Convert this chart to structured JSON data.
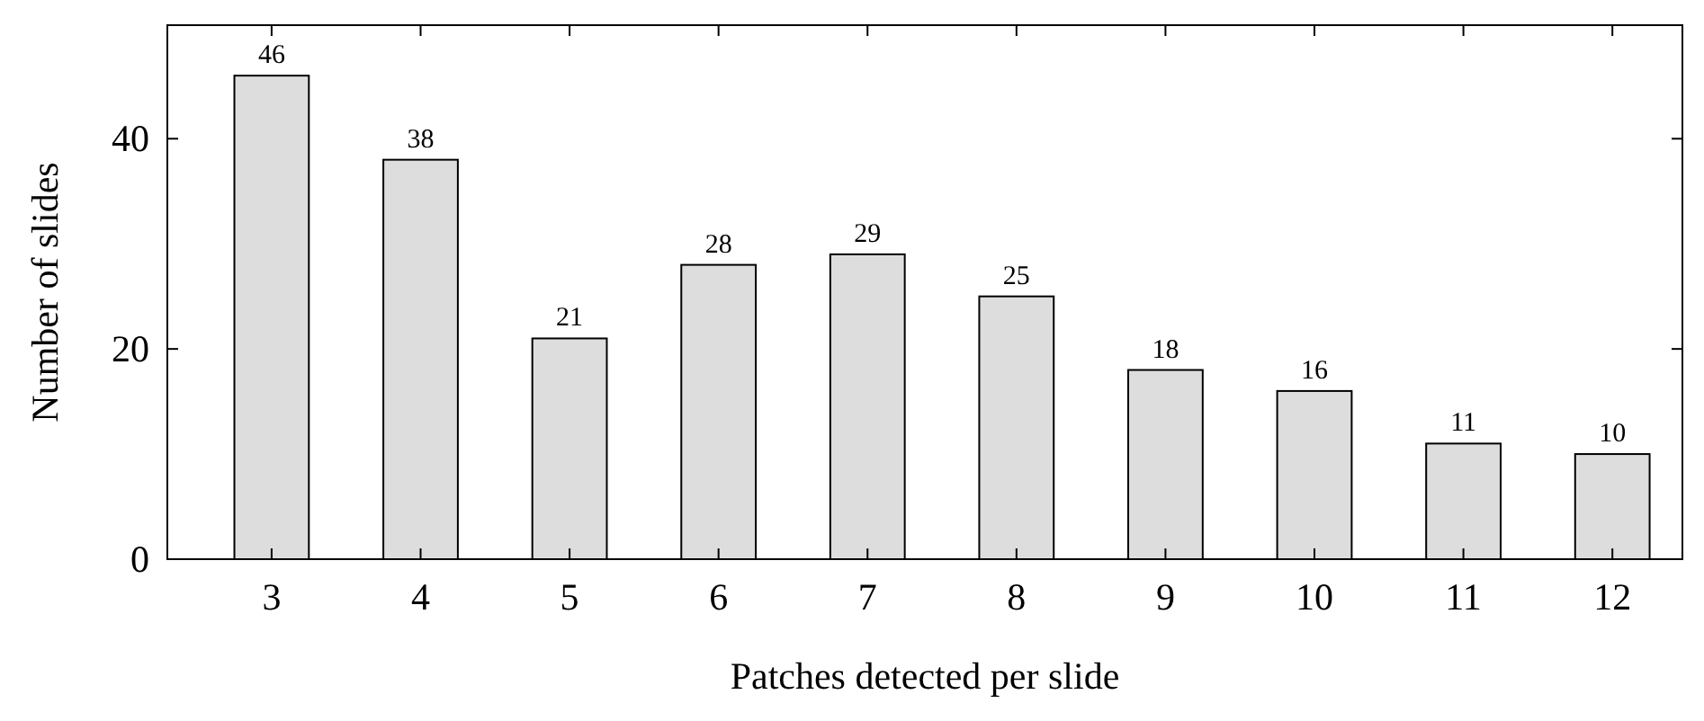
{
  "chart_data": {
    "type": "bar",
    "xlabel": "Patches detected per slide",
    "ylabel": "Number of slides",
    "x": [
      3,
      4,
      5,
      6,
      7,
      8,
      9,
      10,
      11,
      12
    ],
    "values": [
      46,
      38,
      21,
      28,
      29,
      25,
      18,
      16,
      11,
      10
    ],
    "color": "#dddddd",
    "xlim": [
      2.3,
      12.47
    ],
    "xticks": [
      3,
      4,
      5,
      6,
      7,
      8,
      9,
      10,
      11,
      12
    ],
    "ylim": [
      0,
      50.8
    ],
    "yticks": [
      0,
      20,
      40
    ],
    "data_labels": true,
    "grid": false
  }
}
